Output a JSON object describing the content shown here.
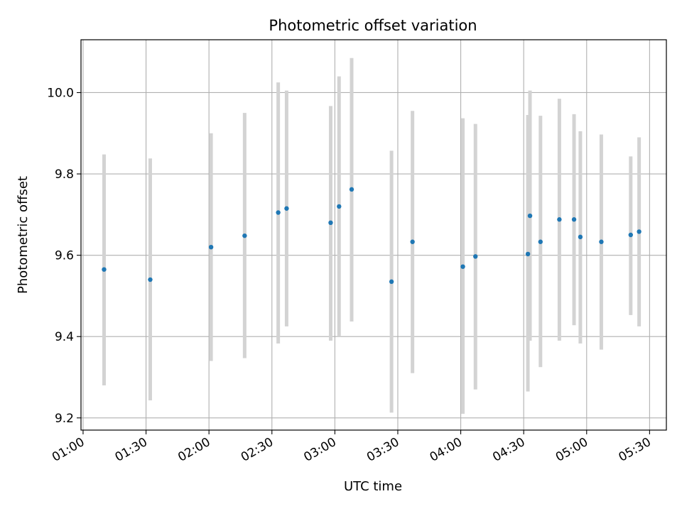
{
  "chart_data": {
    "type": "scatter",
    "title": "Photometric offset variation",
    "xlabel": "UTC time",
    "ylabel": "Photometric offset",
    "x_ticks": [
      "01:00",
      "01:30",
      "02:00",
      "02:30",
      "03:00",
      "03:30",
      "04:00",
      "04:30",
      "05:00",
      "05:30"
    ],
    "y_ticks": [
      "9.2",
      "9.4",
      "9.6",
      "9.8",
      "10.0"
    ],
    "xlim": [
      "00:59",
      "05:38"
    ],
    "ylim": [
      9.17,
      10.13
    ],
    "grid": true,
    "colors": {
      "point": "#1f77b4",
      "errorbar": "#d3d3d3",
      "grid": "#b0b0b0"
    },
    "points": [
      {
        "x": "01:10",
        "y": 9.565,
        "low": 9.28,
        "high": 9.848
      },
      {
        "x": "01:32",
        "y": 9.54,
        "low": 9.243,
        "high": 9.838
      },
      {
        "x": "02:01",
        "y": 9.62,
        "low": 9.34,
        "high": 9.9
      },
      {
        "x": "02:17",
        "y": 9.648,
        "low": 9.347,
        "high": 9.95
      },
      {
        "x": "02:33",
        "y": 9.705,
        "low": 9.383,
        "high": 10.025
      },
      {
        "x": "02:37",
        "y": 9.715,
        "low": 9.425,
        "high": 10.005
      },
      {
        "x": "02:58",
        "y": 9.68,
        "low": 9.39,
        "high": 9.967
      },
      {
        "x": "03:02",
        "y": 9.72,
        "low": 9.4,
        "high": 10.04
      },
      {
        "x": "03:08",
        "y": 9.762,
        "low": 9.437,
        "high": 10.085
      },
      {
        "x": "03:27",
        "y": 9.535,
        "low": 9.213,
        "high": 9.857
      },
      {
        "x": "03:37",
        "y": 9.633,
        "low": 9.31,
        "high": 9.955
      },
      {
        "x": "04:01",
        "y": 9.572,
        "low": 9.21,
        "high": 9.937
      },
      {
        "x": "04:07",
        "y": 9.597,
        "low": 9.27,
        "high": 9.923
      },
      {
        "x": "04:32",
        "y": 9.603,
        "low": 9.265,
        "high": 9.945
      },
      {
        "x": "04:33",
        "y": 9.697,
        "low": 9.39,
        "high": 10.005
      },
      {
        "x": "04:38",
        "y": 9.633,
        "low": 9.325,
        "high": 9.943
      },
      {
        "x": "04:47",
        "y": 9.688,
        "low": 9.39,
        "high": 9.985
      },
      {
        "x": "04:54",
        "y": 9.688,
        "low": 9.428,
        "high": 9.947
      },
      {
        "x": "04:57",
        "y": 9.645,
        "low": 9.383,
        "high": 9.905
      },
      {
        "x": "05:07",
        "y": 9.633,
        "low": 9.368,
        "high": 9.897
      },
      {
        "x": "05:21",
        "y": 9.65,
        "low": 9.453,
        "high": 9.843
      },
      {
        "x": "05:25",
        "y": 9.658,
        "low": 9.425,
        "high": 9.89
      }
    ]
  }
}
